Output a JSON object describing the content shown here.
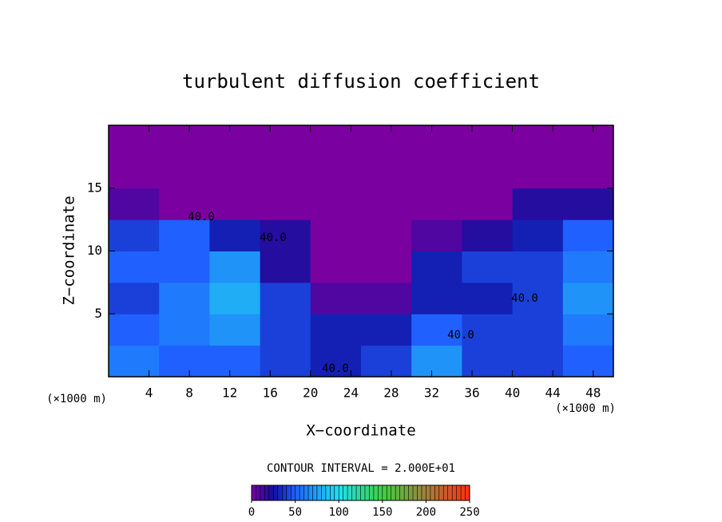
{
  "chart_data": {
    "type": "heatmap",
    "title": "turbulent diffusion coefficient",
    "xlabel": "X−coordinate",
    "ylabel": "Z−coordinate",
    "x_unit": "(×1000 m)",
    "y_unit": "(×1000 m)",
    "xlim": [
      0,
      50
    ],
    "ylim": [
      0,
      20
    ],
    "xticks": [
      4,
      8,
      12,
      16,
      20,
      24,
      28,
      32,
      36,
      40,
      44,
      48
    ],
    "yticks": [
      5,
      10,
      15
    ],
    "x": [
      0,
      5,
      10,
      15,
      20,
      25,
      30,
      35,
      40,
      45,
      50
    ],
    "y": [
      0,
      2.5,
      5,
      7.5,
      10,
      12.5,
      15,
      17.5,
      20
    ],
    "z": [
      [
        60,
        50,
        50,
        40,
        30,
        40,
        70,
        40,
        40,
        50
      ],
      [
        50,
        60,
        70,
        40,
        30,
        30,
        50,
        40,
        40,
        60
      ],
      [
        40,
        60,
        80,
        40,
        10,
        10,
        30,
        30,
        40,
        70
      ],
      [
        50,
        50,
        70,
        20,
        0,
        0,
        30,
        40,
        40,
        60
      ],
      [
        40,
        50,
        30,
        20,
        0,
        0,
        10,
        20,
        30,
        50
      ],
      [
        10,
        0,
        0,
        0,
        0,
        0,
        0,
        0,
        20,
        20
      ],
      [
        0,
        0,
        0,
        0,
        0,
        0,
        0,
        0,
        0,
        0
      ],
      [
        0,
        0,
        0,
        0,
        0,
        0,
        0,
        0,
        0,
        0
      ]
    ],
    "contour_labels": [
      "40.0",
      "40.0",
      "40.0",
      "40.0",
      "40.0"
    ],
    "contour_interval": "CONTOUR INTERVAL = 2.000E+01",
    "colorbar_lim": [
      0,
      250
    ],
    "colorbar_ticks": [
      0,
      50,
      100,
      150,
      200,
      250
    ],
    "colormap": [
      {
        "value": 0,
        "color": "#7a00a0"
      },
      {
        "value": 25,
        "color": "#1010a0"
      },
      {
        "value": 50,
        "color": "#2060ff"
      },
      {
        "value": 100,
        "color": "#20e0f0"
      },
      {
        "value": 150,
        "color": "#40d040"
      },
      {
        "value": 200,
        "color": "#a08040"
      },
      {
        "value": 250,
        "color": "#ff3010"
      }
    ]
  }
}
